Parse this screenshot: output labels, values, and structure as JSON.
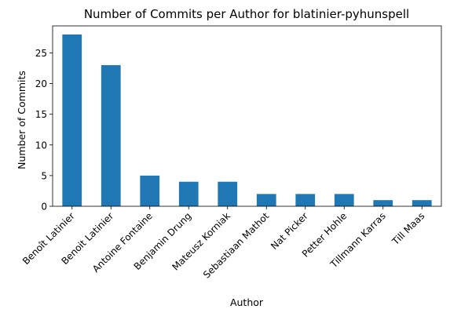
{
  "chart_data": {
    "type": "bar",
    "title": "Number of Commits per Author for blatinier-pyhunspell",
    "xlabel": "Author",
    "ylabel": "Number of Commits",
    "categories": [
      "Benoît Latinier",
      "Benoit Latinier",
      "Antoine Fontaine",
      "Benjamin Drung",
      "Mateusz Korniak",
      "Sebastiaan Mathot",
      "Nat Picker",
      "Petter Hohle",
      "Tillmann Karras",
      "Till Maas"
    ],
    "values": [
      28,
      23,
      5,
      4,
      4,
      2,
      2,
      2,
      1,
      1
    ],
    "ylim": [
      0,
      29.4
    ],
    "yticks": [
      0,
      5,
      10,
      15,
      20,
      25
    ],
    "grid": false,
    "legend": "none",
    "colors": {
      "bar": "#1f77b4",
      "axis": "#000000",
      "background": "#ffffff"
    }
  }
}
